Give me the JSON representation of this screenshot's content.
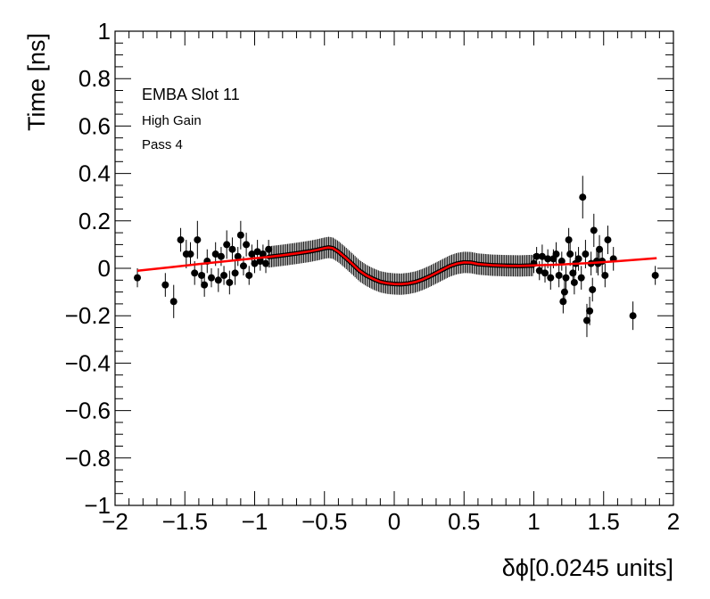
{
  "chart_data": {
    "type": "scatter",
    "xlabel": "δϕ[0.0245 units]",
    "ylabel": "Time [ns]",
    "xlim": [
      -2,
      2
    ],
    "ylim": [
      -1,
      1
    ],
    "grid": false,
    "x_ticks": [
      -2,
      -1.5,
      -1,
      -0.5,
      0,
      0.5,
      1,
      1.5,
      2
    ],
    "x_tick_labels": [
      "−2",
      "−1.5",
      "−1",
      "−0.5",
      "0",
      "0.5",
      "1",
      "1.5",
      "2"
    ],
    "y_ticks": [
      -1,
      -0.8,
      -0.6,
      -0.4,
      -0.2,
      0,
      0.2,
      0.4,
      0.6,
      0.8,
      1
    ],
    "y_tick_labels": [
      "−1",
      "−0.8",
      "−0.6",
      "−0.4",
      "−0.2",
      "0",
      "0.2",
      "0.4",
      "0.6",
      "0.8",
      "1"
    ],
    "annotations": [
      "EMBA Slot 11",
      "High Gain",
      "Pass 4"
    ],
    "marker_color": "#000000",
    "fit_color": "#ff0000",
    "points_sparse": [
      [
        -1.84,
        -0.04,
        0.04
      ],
      [
        -1.64,
        -0.07,
        0.05
      ],
      [
        -1.58,
        -0.14,
        0.07
      ],
      [
        -1.53,
        0.12,
        0.05
      ],
      [
        -1.49,
        0.06,
        0.06
      ],
      [
        -1.46,
        0.06,
        0.05
      ],
      [
        -1.43,
        -0.02,
        0.05
      ],
      [
        -1.41,
        0.12,
        0.08
      ],
      [
        -1.38,
        -0.03,
        0.05
      ],
      [
        -1.36,
        -0.07,
        0.05
      ],
      [
        -1.34,
        0.03,
        0.05
      ],
      [
        -1.31,
        -0.04,
        0.04
      ],
      [
        -1.28,
        0.06,
        0.05
      ],
      [
        -1.26,
        -0.05,
        0.05
      ],
      [
        -1.24,
        0.05,
        0.04
      ],
      [
        -1.22,
        -0.03,
        0.04
      ],
      [
        -1.2,
        0.1,
        0.06
      ],
      [
        -1.18,
        -0.06,
        0.05
      ],
      [
        -1.16,
        0.08,
        0.05
      ],
      [
        -1.14,
        -0.02,
        0.05
      ],
      [
        -1.12,
        0.05,
        0.04
      ],
      [
        -1.1,
        0.14,
        0.06
      ],
      [
        -1.08,
        0.01,
        0.04
      ],
      [
        -1.06,
        0.1,
        0.05
      ],
      [
        -1.04,
        -0.03,
        0.04
      ],
      [
        -1.02,
        0.06,
        0.04
      ],
      [
        -1.0,
        0.02,
        0.04
      ],
      [
        -0.98,
        0.07,
        0.05
      ],
      [
        -0.96,
        0.03,
        0.04
      ],
      [
        -0.94,
        0.06,
        0.04
      ],
      [
        -0.92,
        0.02,
        0.04
      ],
      [
        -0.9,
        0.08,
        0.04
      ],
      [
        1.0,
        0.02,
        0.04
      ],
      [
        1.02,
        0.05,
        0.04
      ],
      [
        1.04,
        -0.01,
        0.04
      ],
      [
        1.06,
        0.05,
        0.05
      ],
      [
        1.08,
        -0.02,
        0.04
      ],
      [
        1.1,
        0.04,
        0.04
      ],
      [
        1.12,
        -0.04,
        0.05
      ],
      [
        1.14,
        0.04,
        0.04
      ],
      [
        1.16,
        0.06,
        0.05
      ],
      [
        1.18,
        -0.03,
        0.05
      ],
      [
        1.2,
        0.03,
        0.04
      ],
      [
        1.21,
        -0.14,
        0.05
      ],
      [
        1.22,
        -0.1,
        0.05
      ],
      [
        1.23,
        -0.04,
        0.05
      ],
      [
        1.25,
        0.12,
        0.05
      ],
      [
        1.26,
        0.06,
        0.05
      ],
      [
        1.28,
        -0.02,
        0.05
      ],
      [
        1.29,
        -0.06,
        0.05
      ],
      [
        1.3,
        0.02,
        0.05
      ],
      [
        1.32,
        0.04,
        0.05
      ],
      [
        1.34,
        -0.04,
        0.05
      ],
      [
        1.35,
        0.3,
        0.09
      ],
      [
        1.37,
        0.06,
        0.06
      ],
      [
        1.38,
        -0.22,
        0.07
      ],
      [
        1.4,
        -0.18,
        0.06
      ],
      [
        1.41,
        0.02,
        0.05
      ],
      [
        1.42,
        -0.09,
        0.05
      ],
      [
        1.43,
        0.16,
        0.07
      ],
      [
        1.45,
        0.03,
        0.05
      ],
      [
        1.46,
        0.02,
        0.05
      ],
      [
        1.47,
        0.08,
        0.06
      ],
      [
        1.49,
        0.03,
        0.05
      ],
      [
        1.51,
        -0.03,
        0.05
      ],
      [
        1.53,
        0.12,
        0.06
      ],
      [
        1.57,
        0.04,
        0.05
      ],
      [
        1.71,
        -0.2,
        0.06
      ],
      [
        1.87,
        -0.03,
        0.04
      ]
    ],
    "dense_error": 0.045,
    "fit_curve": [
      [
        -1.84,
        -0.01
      ],
      [
        -1.6,
        0.005
      ],
      [
        -1.4,
        0.018
      ],
      [
        -1.2,
        0.03
      ],
      [
        -1.0,
        0.042
      ],
      [
        -0.9,
        0.048
      ],
      [
        -0.8,
        0.055
      ],
      [
        -0.7,
        0.063
      ],
      [
        -0.6,
        0.072
      ],
      [
        -0.55,
        0.078
      ],
      [
        -0.5,
        0.085
      ],
      [
        -0.47,
        0.088
      ],
      [
        -0.44,
        0.085
      ],
      [
        -0.4,
        0.07
      ],
      [
        -0.35,
        0.045
      ],
      [
        -0.3,
        0.018
      ],
      [
        -0.25,
        -0.01
      ],
      [
        -0.2,
        -0.03
      ],
      [
        -0.15,
        -0.045
      ],
      [
        -0.1,
        -0.057
      ],
      [
        -0.05,
        -0.063
      ],
      [
        0.0,
        -0.066
      ],
      [
        0.05,
        -0.067
      ],
      [
        0.1,
        -0.064
      ],
      [
        0.15,
        -0.058
      ],
      [
        0.2,
        -0.048
      ],
      [
        0.25,
        -0.035
      ],
      [
        0.3,
        -0.02
      ],
      [
        0.35,
        -0.005
      ],
      [
        0.4,
        0.01
      ],
      [
        0.45,
        0.02
      ],
      [
        0.5,
        0.025
      ],
      [
        0.55,
        0.024
      ],
      [
        0.6,
        0.018
      ],
      [
        0.7,
        0.013
      ],
      [
        0.8,
        0.011
      ],
      [
        0.9,
        0.01
      ],
      [
        1.0,
        0.012
      ],
      [
        1.2,
        0.016
      ],
      [
        1.4,
        0.022
      ],
      [
        1.6,
        0.03
      ],
      [
        1.88,
        0.043
      ]
    ]
  }
}
